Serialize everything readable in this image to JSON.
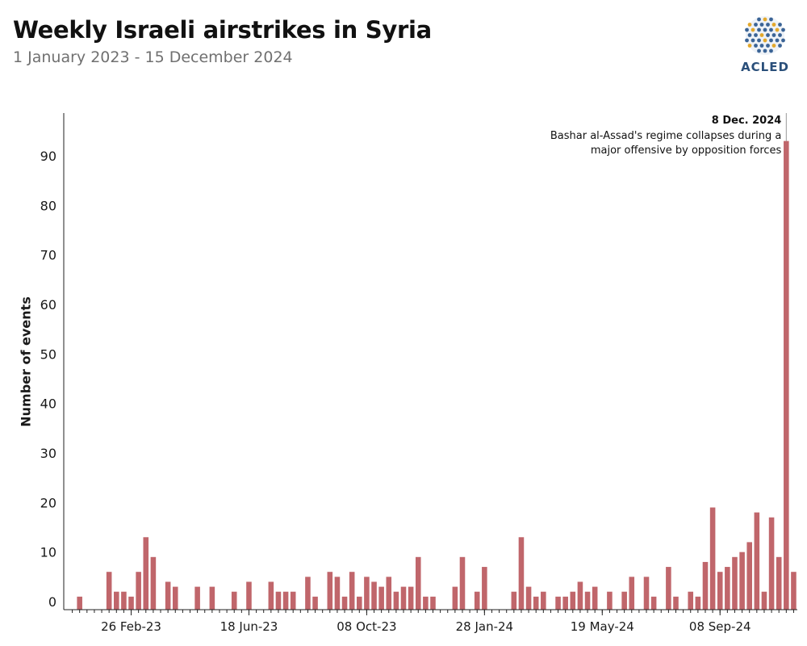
{
  "title": "Weekly Israeli airstrikes in Syria",
  "subtitle": "1 January 2023 - 15 December 2024",
  "logo": {
    "text": "ACLED",
    "icon": "globe-dots-icon"
  },
  "colors": {
    "bar": "#c0666b",
    "axis": "#222222",
    "text": "#1a1a1a",
    "annotation_line": "#999999"
  },
  "chart_data": {
    "type": "bar",
    "ylabel": "Number of events",
    "xlabel": "",
    "ylim": [
      0,
      97
    ],
    "yticks": [
      0,
      10,
      20,
      30,
      40,
      50,
      60,
      70,
      80,
      90
    ],
    "x_tick_labels": [
      {
        "label": "26 Feb-23",
        "week_index": 8
      },
      {
        "label": "18 Jun-23",
        "week_index": 24
      },
      {
        "label": "08 Oct-23",
        "week_index": 40
      },
      {
        "label": "28 Jan-24",
        "week_index": 56
      },
      {
        "label": "19 May-24",
        "week_index": 72
      },
      {
        "label": "08 Sep-24",
        "week_index": 88
      }
    ],
    "values": [
      0,
      1,
      0,
      0,
      0,
      6,
      2,
      2,
      1,
      6,
      13,
      9,
      0,
      4,
      3,
      0,
      0,
      3,
      0,
      3,
      0,
      0,
      2,
      0,
      4,
      0,
      0,
      4,
      2,
      2,
      2,
      0,
      5,
      1,
      0,
      6,
      5,
      1,
      6,
      1,
      5,
      4,
      3,
      5,
      2,
      3,
      3,
      9,
      1,
      1,
      0,
      0,
      3,
      9,
      0,
      2,
      7,
      0,
      0,
      0,
      2,
      13,
      3,
      1,
      2,
      0,
      1,
      1,
      2,
      4,
      2,
      3,
      0,
      2,
      0,
      2,
      5,
      0,
      5,
      1,
      0,
      7,
      1,
      0,
      2,
      1,
      8,
      19,
      6,
      7,
      9,
      10,
      12,
      18,
      2,
      17,
      9,
      93,
      6
    ],
    "grid": false,
    "annotation": {
      "date": "8 Dec. 2024",
      "text_lines": [
        "Bashar al-Assad's regime collapses during a",
        "major offensive by opposition forces"
      ],
      "week_index": 97
    }
  }
}
